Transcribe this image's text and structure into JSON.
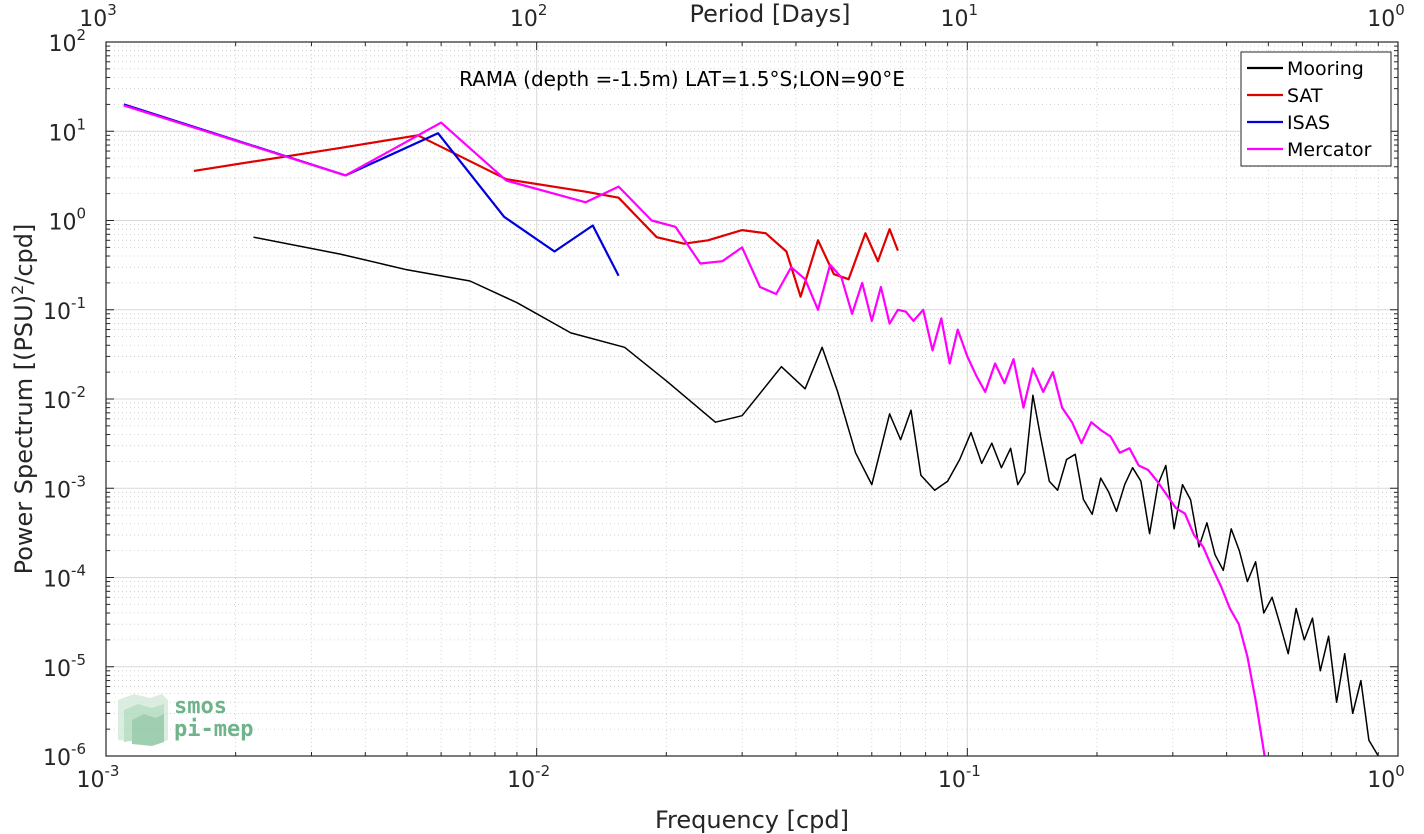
{
  "chart_data": {
    "type": "line",
    "title": "",
    "annotation": "RAMA (depth =-1.5m) LAT=1.5°S;LON=90°E",
    "xlabel": "Frequency [cpd]",
    "ylabel_main": "Power Spectrum [(PSU)",
    "ylabel_sup": "2",
    "ylabel_tail": "/cpd]",
    "top_xlabel": "Period [Days]",
    "xscale": "log",
    "yscale": "log",
    "xlim": [
      0.001,
      1
    ],
    "ylim": [
      1e-06,
      100
    ],
    "grid": true,
    "legend_position": "top-right",
    "x_ticks": [
      {
        "value": 0.001,
        "base": "10",
        "exp": "-3"
      },
      {
        "value": 0.01,
        "base": "10",
        "exp": "-2"
      },
      {
        "value": 0.1,
        "base": "10",
        "exp": "-1"
      },
      {
        "value": 1,
        "base": "10",
        "exp": "0"
      }
    ],
    "top_ticks": [
      {
        "value": 0.001,
        "base": "10",
        "exp": "3"
      },
      {
        "value": 0.01,
        "base": "10",
        "exp": "2"
      },
      {
        "value": 0.1,
        "base": "10",
        "exp": "1"
      },
      {
        "value": 1,
        "base": "10",
        "exp": "0"
      }
    ],
    "y_ticks": [
      {
        "value": 100,
        "base": "10",
        "exp": "2"
      },
      {
        "value": 10,
        "base": "10",
        "exp": "1"
      },
      {
        "value": 1,
        "base": "10",
        "exp": "0"
      },
      {
        "value": 0.1,
        "base": "10",
        "exp": "-1"
      },
      {
        "value": 0.01,
        "base": "10",
        "exp": "-2"
      },
      {
        "value": 0.001,
        "base": "10",
        "exp": "-3"
      },
      {
        "value": 0.0001,
        "base": "10",
        "exp": "-4"
      },
      {
        "value": 1e-05,
        "base": "10",
        "exp": "-5"
      },
      {
        "value": 1e-06,
        "base": "10",
        "exp": "-6"
      }
    ],
    "series": [
      {
        "name": "Mooring",
        "color": "#000000",
        "x": [
          0.0022,
          0.0035,
          0.005,
          0.007,
          0.009,
          0.012,
          0.016,
          0.02,
          0.026,
          0.03,
          0.037,
          0.042,
          0.046,
          0.05,
          0.055,
          0.06,
          0.066,
          0.07,
          0.074,
          0.078,
          0.084,
          0.09,
          0.096,
          0.102,
          0.108,
          0.114,
          0.12,
          0.126,
          0.131,
          0.136,
          0.142,
          0.148,
          0.155,
          0.162,
          0.17,
          0.178,
          0.186,
          0.195,
          0.204,
          0.213,
          0.222,
          0.232,
          0.242,
          0.253,
          0.265,
          0.277,
          0.289,
          0.302,
          0.316,
          0.33,
          0.345,
          0.36,
          0.376,
          0.393,
          0.41,
          0.428,
          0.447,
          0.467,
          0.488,
          0.51,
          0.532,
          0.556,
          0.58,
          0.606,
          0.633,
          0.66,
          0.69,
          0.72,
          0.752,
          0.785,
          0.82,
          0.856,
          0.9
        ],
        "y": [
          0.65,
          0.42,
          0.28,
          0.21,
          0.12,
          0.055,
          0.038,
          0.016,
          0.0055,
          0.0065,
          0.023,
          0.013,
          0.038,
          0.012,
          0.0025,
          0.0011,
          0.0068,
          0.0035,
          0.0075,
          0.0014,
          0.00095,
          0.0012,
          0.0021,
          0.0042,
          0.0019,
          0.0032,
          0.0017,
          0.0028,
          0.0011,
          0.0015,
          0.011,
          0.0037,
          0.0012,
          0.00095,
          0.0021,
          0.0024,
          0.00075,
          0.00051,
          0.0013,
          0.0009,
          0.00055,
          0.0011,
          0.0017,
          0.0012,
          0.00031,
          0.0011,
          0.0018,
          0.00035,
          0.0011,
          0.00074,
          0.00022,
          0.00041,
          0.00018,
          0.00012,
          0.00035,
          0.0002,
          9e-05,
          0.00015,
          4e-05,
          6e-05,
          3e-05,
          1.4e-05,
          4.5e-05,
          2e-05,
          3.5e-05,
          9e-06,
          2.2e-05,
          4e-06,
          1.4e-05,
          3e-06,
          7e-06,
          1.5e-06,
          1e-06
        ]
      },
      {
        "name": "SAT",
        "color": "#e00000",
        "x": [
          0.0016,
          0.0035,
          0.0053,
          0.0085,
          0.013,
          0.0155,
          0.019,
          0.022,
          0.025,
          0.03,
          0.034,
          0.038,
          0.041,
          0.045,
          0.049,
          0.053,
          0.058,
          0.062,
          0.066,
          0.069
        ],
        "y": [
          3.6,
          6.5,
          9.0,
          2.9,
          2.1,
          1.8,
          0.65,
          0.55,
          0.6,
          0.78,
          0.72,
          0.45,
          0.14,
          0.6,
          0.25,
          0.22,
          0.72,
          0.35,
          0.8,
          0.46
        ]
      },
      {
        "name": "ISAS",
        "color": "#0000dd",
        "x": [
          0.0011,
          0.0036,
          0.0059,
          0.0084,
          0.011,
          0.0135,
          0.0155
        ],
        "y": [
          20,
          3.2,
          9.5,
          1.1,
          0.45,
          0.88,
          0.24
        ]
      },
      {
        "name": "Mercator",
        "color": "#ff00ff",
        "x": [
          0.0011,
          0.0036,
          0.006,
          0.0085,
          0.013,
          0.0155,
          0.0185,
          0.021,
          0.024,
          0.027,
          0.03,
          0.033,
          0.036,
          0.039,
          0.042,
          0.045,
          0.048,
          0.051,
          0.054,
          0.057,
          0.06,
          0.063,
          0.066,
          0.069,
          0.072,
          0.075,
          0.079,
          0.083,
          0.087,
          0.091,
          0.095,
          0.1,
          0.105,
          0.11,
          0.116,
          0.122,
          0.128,
          0.135,
          0.142,
          0.15,
          0.158,
          0.166,
          0.175,
          0.184,
          0.194,
          0.204,
          0.215,
          0.226,
          0.238,
          0.25,
          0.263,
          0.276,
          0.29,
          0.305,
          0.32,
          0.336,
          0.353,
          0.37,
          0.388,
          0.407,
          0.427,
          0.447,
          0.468,
          0.49
        ],
        "y": [
          19.5,
          3.2,
          12.5,
          2.8,
          1.6,
          2.4,
          1.0,
          0.85,
          0.33,
          0.35,
          0.5,
          0.18,
          0.15,
          0.3,
          0.22,
          0.1,
          0.32,
          0.23,
          0.09,
          0.2,
          0.075,
          0.18,
          0.07,
          0.1,
          0.095,
          0.075,
          0.1,
          0.035,
          0.08,
          0.025,
          0.06,
          0.03,
          0.018,
          0.012,
          0.025,
          0.015,
          0.028,
          0.008,
          0.022,
          0.012,
          0.02,
          0.008,
          0.0055,
          0.0032,
          0.0055,
          0.0045,
          0.0038,
          0.0025,
          0.0028,
          0.0018,
          0.0016,
          0.0012,
          0.00085,
          0.0006,
          0.00052,
          0.0003,
          0.00022,
          0.00013,
          8e-05,
          4.5e-05,
          3e-05,
          1.3e-05,
          4e-06,
          1e-06
        ]
      }
    ]
  },
  "logo": {
    "line1": "smos",
    "line2": "pi-mep",
    "color": "#6fb38b"
  }
}
